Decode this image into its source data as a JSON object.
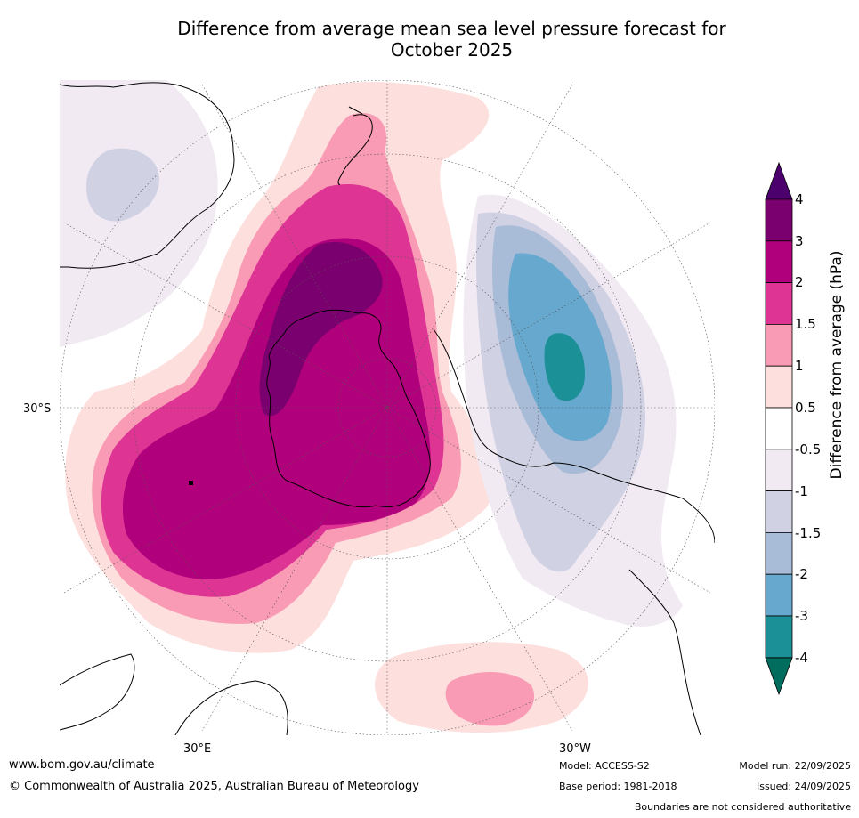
{
  "title": {
    "line1": "Difference from average mean sea level pressure forecast for",
    "line2": "October 2025"
  },
  "map_labels": {
    "lat_30s": "30°S",
    "lon_30e": "30°E",
    "lon_30w": "30°W"
  },
  "legend": {
    "title": "Difference from average (hPa)",
    "levels": [
      "4",
      "3",
      "2",
      "1.5",
      "1",
      "0.5",
      "-0.5",
      "-1",
      "-1.5",
      "-2",
      "-3",
      "-4"
    ],
    "colors": [
      "#4b006e",
      "#7b006f",
      "#b1007b",
      "#de3595",
      "#f99bb4",
      "#fde0dd",
      "#ffffff",
      "#f1eaf3",
      "#d1d1e4",
      "#a8bcd8",
      "#67a8ce",
      "#1c9097",
      "#006d5e"
    ]
  },
  "footer": {
    "website": "www.bom.gov.au/climate",
    "copyright": "© Commonwealth of Australia 2025, Australian Bureau of Meteorology",
    "model": "Model: ACCESS-S2",
    "base_period": "Base period: 1981-2018",
    "model_run": "Model run: 22/09/2025",
    "issued": "Issued: 24/09/2025",
    "disclaimer": "Boundaries are not considered authoritative"
  }
}
